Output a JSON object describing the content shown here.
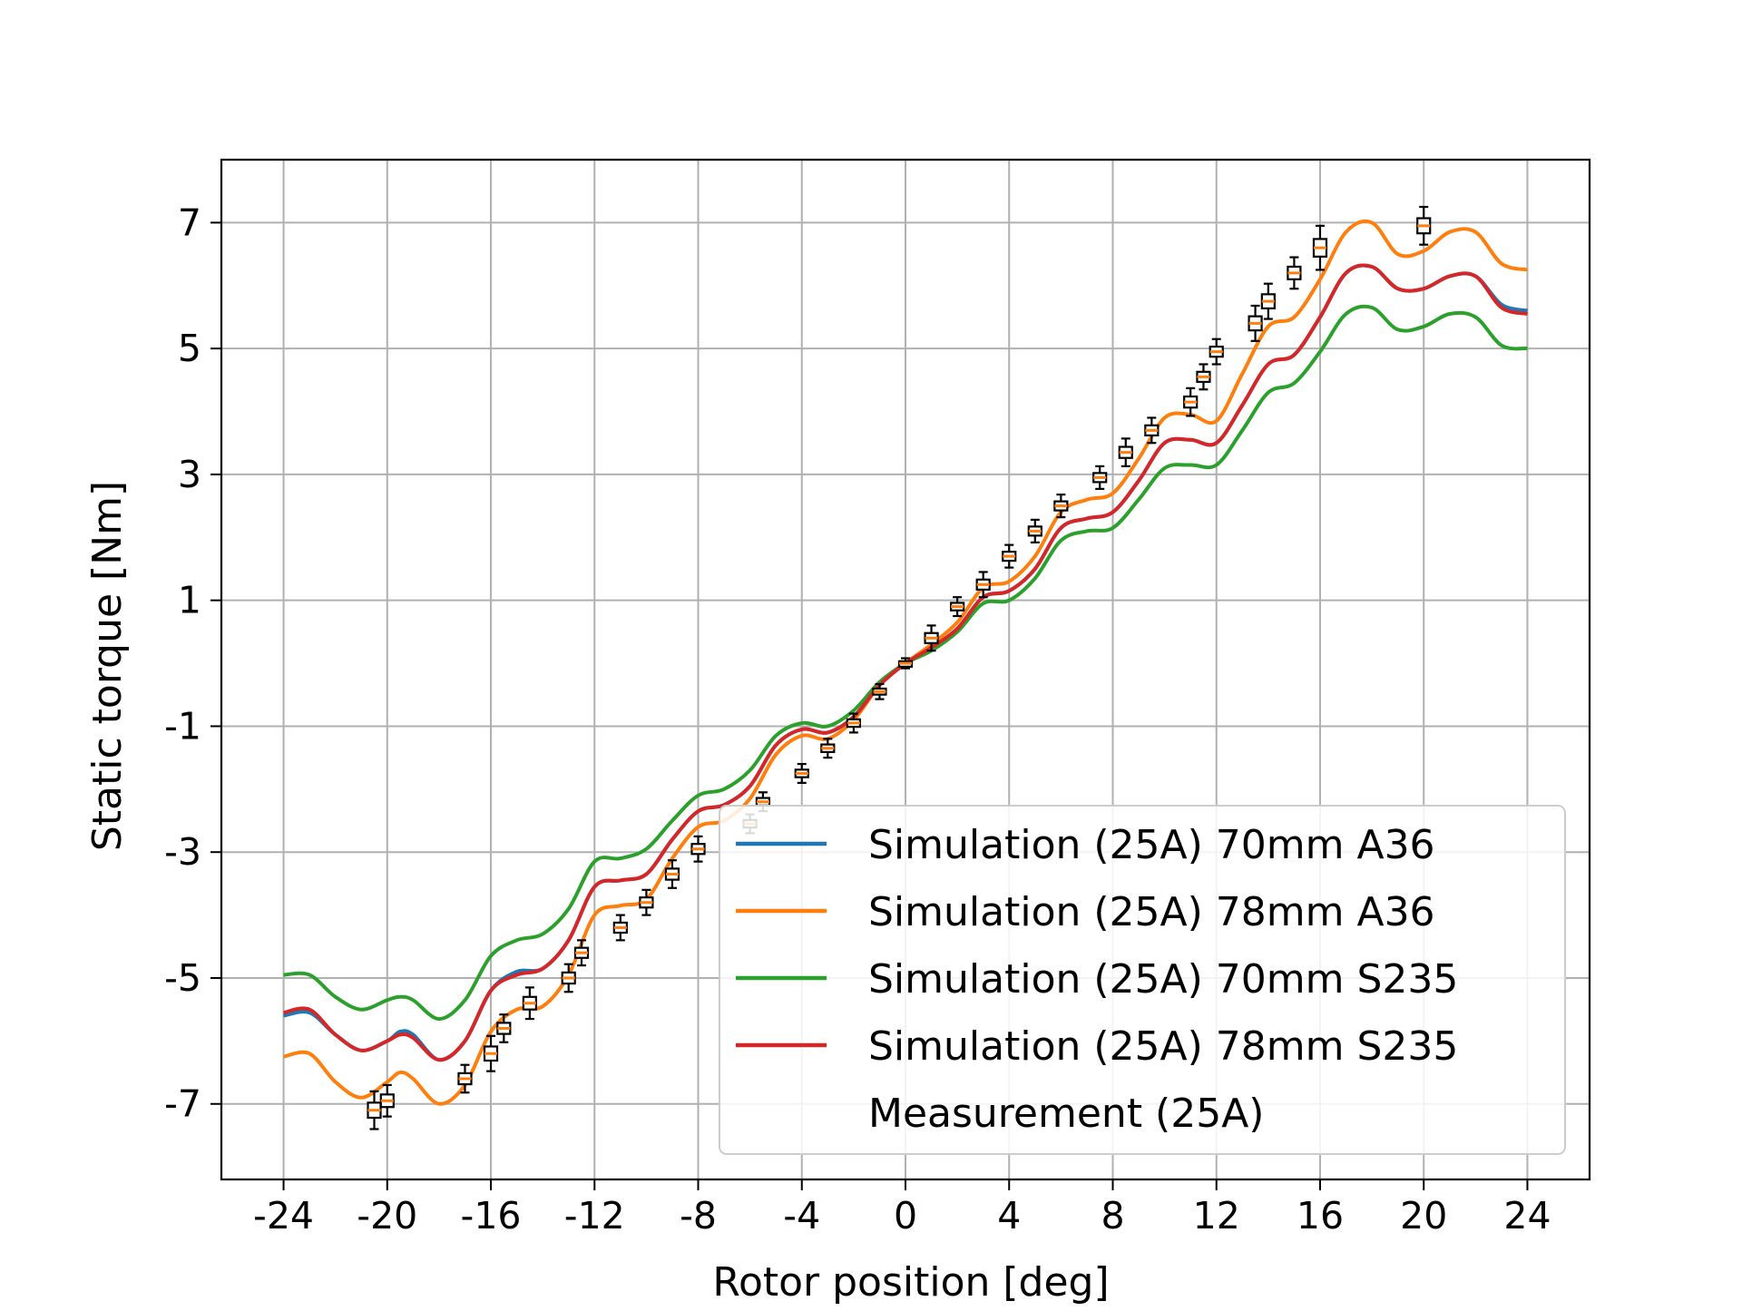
{
  "chart_data": {
    "type": "line",
    "title": "",
    "xlabel": "Rotor position [deg]",
    "ylabel": "Static torque [Nm]",
    "xlim": [
      -26.4,
      26.4
    ],
    "ylim": [
      -8.2,
      8.0
    ],
    "xticks": [
      -24,
      -20,
      -16,
      -12,
      -8,
      -4,
      0,
      4,
      8,
      12,
      16,
      20,
      24
    ],
    "yticks": [
      -7,
      -5,
      -3,
      -1,
      1,
      3,
      5,
      7
    ],
    "xtick_labels": [
      "-24",
      "-20",
      "-16",
      "-12",
      "-8",
      "-4",
      "0",
      "4",
      "8",
      "12",
      "16",
      "20",
      "24"
    ],
    "ytick_labels": [
      "-7",
      "-5",
      "-3",
      "-1",
      "1",
      "3",
      "5",
      "7"
    ],
    "grid": true,
    "legend_position": "lower-right",
    "series": [
      {
        "name": "Simulation (25A) 70mm A36",
        "color": "#1f77b4",
        "x": [
          -24,
          -23,
          -22,
          -21,
          -20,
          -19.5,
          -19,
          -18,
          -17,
          -16,
          -15,
          -14,
          -13,
          -12,
          -11,
          -10,
          -9,
          -8,
          -7,
          -6,
          -5,
          -4,
          -3,
          -2,
          -1,
          0,
          1,
          2,
          3,
          4,
          5,
          6,
          7,
          8,
          9,
          10,
          11,
          12,
          13,
          14,
          15,
          16,
          17,
          18,
          19,
          20,
          21,
          22,
          23,
          24
        ],
        "y": [
          -5.6,
          -5.55,
          -5.9,
          -6.15,
          -6.0,
          -5.85,
          -5.9,
          -6.3,
          -6.0,
          -5.2,
          -4.9,
          -4.85,
          -4.4,
          -3.55,
          -3.45,
          -3.35,
          -2.8,
          -2.35,
          -2.25,
          -1.95,
          -1.3,
          -1.05,
          -1.1,
          -0.85,
          -0.35,
          0.0,
          0.25,
          0.55,
          1.05,
          1.15,
          1.5,
          2.15,
          2.3,
          2.4,
          2.9,
          3.5,
          3.55,
          3.5,
          4.1,
          4.75,
          4.9,
          5.5,
          6.2,
          6.3,
          5.95,
          5.95,
          6.15,
          6.15,
          5.7,
          5.6
        ]
      },
      {
        "name": "Simulation (25A) 78mm A36",
        "color": "#ff7f0e",
        "x": [
          -24,
          -23,
          -22,
          -21,
          -20,
          -19.5,
          -19,
          -18,
          -17,
          -16,
          -15,
          -14,
          -13,
          -12,
          -11,
          -10,
          -9,
          -8,
          -7,
          -6,
          -5,
          -4,
          -3,
          -2,
          -1,
          0,
          1,
          2,
          3,
          4,
          5,
          6,
          7,
          8,
          9,
          10,
          11,
          12,
          13,
          14,
          15,
          16,
          17,
          18,
          19,
          20,
          21,
          22,
          23,
          24
        ],
        "y": [
          -6.25,
          -6.2,
          -6.65,
          -6.9,
          -6.65,
          -6.5,
          -6.6,
          -7.0,
          -6.7,
          -5.85,
          -5.5,
          -5.45,
          -4.95,
          -4.0,
          -3.85,
          -3.75,
          -3.1,
          -2.6,
          -2.5,
          -2.15,
          -1.45,
          -1.15,
          -1.2,
          -0.9,
          -0.35,
          0.0,
          0.3,
          0.65,
          1.2,
          1.3,
          1.7,
          2.4,
          2.6,
          2.7,
          3.25,
          3.9,
          3.95,
          3.85,
          4.6,
          5.35,
          5.5,
          6.1,
          6.85,
          7.0,
          6.5,
          6.55,
          6.85,
          6.85,
          6.35,
          6.25
        ]
      },
      {
        "name": "Simulation (25A) 70mm S235",
        "color": "#2ca02c",
        "x": [
          -24,
          -23,
          -22,
          -21,
          -20,
          -19.5,
          -19,
          -18,
          -17,
          -16,
          -15,
          -14,
          -13,
          -12,
          -11,
          -10,
          -9,
          -8,
          -7,
          -6,
          -5,
          -4,
          -3,
          -2,
          -1,
          0,
          1,
          2,
          3,
          4,
          5,
          6,
          7,
          8,
          9,
          10,
          11,
          12,
          13,
          14,
          15,
          16,
          17,
          18,
          19,
          20,
          21,
          22,
          23,
          24
        ],
        "y": [
          -4.95,
          -4.95,
          -5.3,
          -5.5,
          -5.35,
          -5.3,
          -5.35,
          -5.65,
          -5.35,
          -4.65,
          -4.4,
          -4.3,
          -3.9,
          -3.15,
          -3.1,
          -2.95,
          -2.5,
          -2.1,
          -2.0,
          -1.7,
          -1.15,
          -0.95,
          -1.0,
          -0.75,
          -0.3,
          0.0,
          0.2,
          0.5,
          0.95,
          1.0,
          1.35,
          1.95,
          2.1,
          2.15,
          2.6,
          3.1,
          3.15,
          3.15,
          3.7,
          4.3,
          4.45,
          4.95,
          5.55,
          5.65,
          5.3,
          5.35,
          5.55,
          5.5,
          5.05,
          5.0
        ]
      },
      {
        "name": "Simulation (25A) 78mm S235",
        "color": "#d62728",
        "x": [
          -24,
          -23,
          -22,
          -21,
          -20,
          -19.5,
          -19,
          -18,
          -17,
          -16,
          -15,
          -14,
          -13,
          -12,
          -11,
          -10,
          -9,
          -8,
          -7,
          -6,
          -5,
          -4,
          -3,
          -2,
          -1,
          0,
          1,
          2,
          3,
          4,
          5,
          6,
          7,
          8,
          9,
          10,
          11,
          12,
          13,
          14,
          15,
          16,
          17,
          18,
          19,
          20,
          21,
          22,
          23,
          24
        ],
        "y": [
          -5.55,
          -5.5,
          -5.9,
          -6.15,
          -6.0,
          -5.9,
          -5.95,
          -6.3,
          -6.0,
          -5.2,
          -4.95,
          -4.85,
          -4.4,
          -3.55,
          -3.45,
          -3.35,
          -2.8,
          -2.35,
          -2.25,
          -1.95,
          -1.3,
          -1.05,
          -1.1,
          -0.85,
          -0.35,
          0.0,
          0.25,
          0.55,
          1.05,
          1.15,
          1.5,
          2.15,
          2.3,
          2.4,
          2.9,
          3.5,
          3.55,
          3.5,
          4.1,
          4.75,
          4.9,
          5.5,
          6.2,
          6.3,
          5.95,
          5.95,
          6.15,
          6.15,
          5.65,
          5.55
        ]
      }
    ],
    "measurement": {
      "name": "Measurement (25A)",
      "x": [
        -20.5,
        -20,
        -17,
        -16,
        -15.5,
        -14.5,
        -13,
        -12.5,
        -11,
        -10,
        -9,
        -8,
        -6,
        -5.5,
        -4,
        -3,
        -2,
        -1,
        0,
        1,
        2,
        3,
        4,
        5,
        6,
        7.5,
        8.5,
        9.5,
        11,
        11.5,
        12,
        13.5,
        14,
        15,
        16,
        20
      ],
      "median": [
        -7.1,
        -6.95,
        -6.6,
        -6.2,
        -5.8,
        -5.4,
        -5.0,
        -4.6,
        -4.2,
        -3.8,
        -3.35,
        -2.95,
        -2.55,
        -2.2,
        -1.75,
        -1.35,
        -0.95,
        -0.45,
        0.0,
        0.4,
        0.9,
        1.25,
        1.7,
        2.1,
        2.5,
        2.95,
        3.35,
        3.7,
        4.15,
        4.55,
        4.95,
        5.4,
        5.75,
        6.2,
        6.6,
        6.95
      ],
      "spread": [
        0.3,
        0.25,
        0.22,
        0.28,
        0.22,
        0.25,
        0.22,
        0.2,
        0.2,
        0.2,
        0.22,
        0.2,
        0.15,
        0.15,
        0.15,
        0.15,
        0.15,
        0.12,
        0.08,
        0.2,
        0.15,
        0.2,
        0.18,
        0.18,
        0.18,
        0.18,
        0.22,
        0.2,
        0.22,
        0.2,
        0.2,
        0.28,
        0.28,
        0.25,
        0.35,
        0.3
      ]
    }
  }
}
